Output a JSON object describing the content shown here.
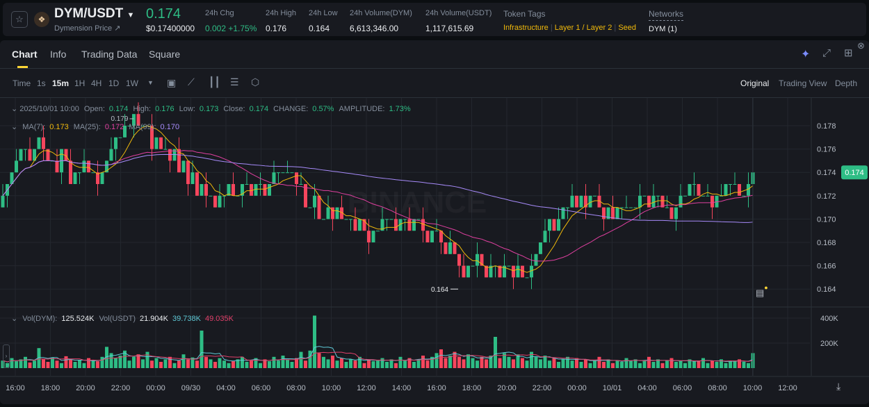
{
  "header": {
    "pair": "DYM/USDT",
    "subtitle": "Dymension Price ↗",
    "price": "0.174",
    "price_usd": "$0.17400000",
    "stats": [
      {
        "label": "24h Chg",
        "value": "0.002 +1.75%",
        "color": "#2ebd85"
      },
      {
        "label": "24h High",
        "value": "0.176"
      },
      {
        "label": "24h Low",
        "value": "0.164"
      },
      {
        "label": "24h Volume(DYM)",
        "value": "6,613,346.00"
      },
      {
        "label": "24h Volume(USDT)",
        "value": "1,117,615.69"
      }
    ],
    "tags_label": "Token Tags",
    "tags": [
      "Infrastructure",
      "Layer 1 / Layer 2",
      "Seed"
    ],
    "networks_label": "Networks",
    "networks_value": "DYM (1)"
  },
  "tabs": [
    "Chart",
    "Info",
    "Trading Data",
    "Square"
  ],
  "active_tab": "Chart",
  "intervals": [
    "Time",
    "1s",
    "15m",
    "1H",
    "4H",
    "1D",
    "1W"
  ],
  "active_interval": "15m",
  "views": [
    "Original",
    "Trading View",
    "Depth"
  ],
  "active_view": "Original",
  "legend": {
    "datetime": "2025/10/01 10:00",
    "ohlc": [
      {
        "k": "Open:",
        "v": "0.174"
      },
      {
        "k": "High:",
        "v": "0.176"
      },
      {
        "k": "Low:",
        "v": "0.173"
      },
      {
        "k": "Close:",
        "v": "0.174"
      },
      {
        "k": "CHANGE:",
        "v": "0.57%"
      },
      {
        "k": "AMPLITUDE:",
        "v": "1.73%"
      }
    ],
    "ma": [
      {
        "k": "MA(7):",
        "v": "0.173",
        "color": "#f0b90b"
      },
      {
        "k": "MA(25):",
        "v": "0.172",
        "color": "#e040a0"
      },
      {
        "k": "MA(99):",
        "v": "0.170",
        "color": "#a78bfa"
      }
    ],
    "vol": [
      {
        "k": "Vol(DYM):",
        "v": "125.524K",
        "color": "#eaecef"
      },
      {
        "k": "Vol(USDT)",
        "v": "21.904K",
        "color": "#eaecef"
      },
      {
        "k": "",
        "v": "39.738K",
        "color": "#5fc9d6"
      },
      {
        "k": "",
        "v": "49.035K",
        "color": "#e0406a"
      }
    ]
  },
  "watermark": "BINANCE",
  "colors": {
    "up": "#2ebd85",
    "down": "#f6465d",
    "ma7": "#f0b90b",
    "ma25": "#e040a0",
    "ma99": "#a78bfa",
    "accent": "#fcd535"
  },
  "chart_data": {
    "type": "candlestick",
    "interval": "15m",
    "price_ticks": [
      "0.178",
      "0.176",
      "0.174",
      "0.172",
      "0.170",
      "0.168",
      "0.166",
      "0.164"
    ],
    "ylim": [
      0.1628,
      0.1795
    ],
    "volume_ticks": [
      "400K",
      "200K"
    ],
    "volume_ylim": [
      0,
      400
    ],
    "x_labels": [
      "16:00",
      "18:00",
      "20:00",
      "22:00",
      "00:00",
      "09/30",
      "04:00",
      "06:00",
      "08:00",
      "10:00",
      "12:00",
      "14:00",
      "16:00",
      "18:00",
      "20:00",
      "22:00",
      "00:00",
      "10/01",
      "04:00",
      "06:00",
      "08:00",
      "10:00",
      "12:00"
    ],
    "last_price": "0.174",
    "high_marker": "0.179",
    "low_marker": "0.164",
    "close": [
      0.172,
      0.173,
      0.174,
      0.175,
      0.176,
      0.176,
      0.175,
      0.176,
      0.177,
      0.176,
      0.175,
      0.175,
      0.174,
      0.176,
      0.175,
      0.173,
      0.174,
      0.174,
      0.175,
      0.174,
      0.174,
      0.173,
      0.174,
      0.175,
      0.176,
      0.177,
      0.177,
      0.178,
      0.178,
      0.179,
      0.178,
      0.178,
      0.178,
      0.176,
      0.177,
      0.176,
      0.176,
      0.175,
      0.176,
      0.174,
      0.175,
      0.173,
      0.174,
      0.172,
      0.173,
      0.172,
      0.172,
      0.171,
      0.172,
      0.172,
      0.173,
      0.172,
      0.172,
      0.173,
      0.173,
      0.172,
      0.173,
      0.173,
      0.172,
      0.173,
      0.174,
      0.174,
      0.174,
      0.174,
      0.174,
      0.173,
      0.173,
      0.171,
      0.171,
      0.172,
      0.17,
      0.17,
      0.171,
      0.17,
      0.171,
      0.17,
      0.17,
      0.17,
      0.169,
      0.17,
      0.169,
      0.168,
      0.169,
      0.169,
      0.17,
      0.17,
      0.17,
      0.169,
      0.17,
      0.17,
      0.169,
      0.17,
      0.17,
      0.169,
      0.168,
      0.169,
      0.169,
      0.168,
      0.167,
      0.168,
      0.167,
      0.166,
      0.165,
      0.166,
      0.166,
      0.167,
      0.166,
      0.165,
      0.166,
      0.166,
      0.165,
      0.166,
      0.166,
      0.165,
      0.166,
      0.165,
      0.165,
      0.166,
      0.167,
      0.168,
      0.169,
      0.17,
      0.169,
      0.17,
      0.171,
      0.171,
      0.172,
      0.171,
      0.172,
      0.171,
      0.172,
      0.172,
      0.171,
      0.17,
      0.171,
      0.17,
      0.171,
      0.171,
      0.171,
      0.171,
      0.171,
      0.172,
      0.172,
      0.171,
      0.172,
      0.172,
      0.171,
      0.171,
      0.17,
      0.171,
      0.172,
      0.172,
      0.173,
      0.173,
      0.172,
      0.172,
      0.172,
      0.171,
      0.172,
      0.172,
      0.173,
      0.173,
      0.173,
      0.172,
      0.172,
      0.173,
      0.174
    ],
    "volume_k": [
      60,
      40,
      80,
      55,
      70,
      90,
      45,
      60,
      160,
      70,
      50,
      85,
      60,
      40,
      95,
      70,
      50,
      65,
      40,
      80,
      60,
      55,
      90,
      170,
      120,
      80,
      100,
      140,
      60,
      90,
      110,
      70,
      130,
      60,
      80,
      50,
      70,
      90,
      40,
      60,
      110,
      70,
      85,
      60,
      300,
      90,
      70,
      50,
      80,
      60,
      40,
      55,
      70,
      90,
      50,
      60,
      80,
      40,
      70,
      55,
      90,
      60,
      100,
      70,
      50,
      80,
      130,
      60,
      140,
      420,
      120,
      90,
      70,
      100,
      60,
      80,
      50,
      70,
      60,
      90,
      40,
      70,
      55,
      60,
      80,
      50,
      70,
      40,
      90,
      60,
      80,
      50,
      70,
      100,
      60,
      90,
      120,
      150,
      80,
      100,
      130,
      90,
      70,
      110,
      80,
      60,
      90,
      70,
      100,
      250,
      80,
      120,
      90,
      70,
      110,
      80,
      60,
      130,
      90,
      70,
      100,
      60,
      80,
      50,
      70,
      90,
      60,
      80,
      50,
      70,
      40,
      60,
      90,
      50,
      70,
      40,
      60,
      50,
      80,
      60,
      70,
      40,
      60,
      90,
      50,
      70,
      40,
      60,
      80,
      50,
      60,
      40,
      70,
      55,
      60,
      80,
      40,
      60,
      50,
      70,
      40,
      55,
      60,
      70,
      50,
      40,
      120
    ]
  }
}
